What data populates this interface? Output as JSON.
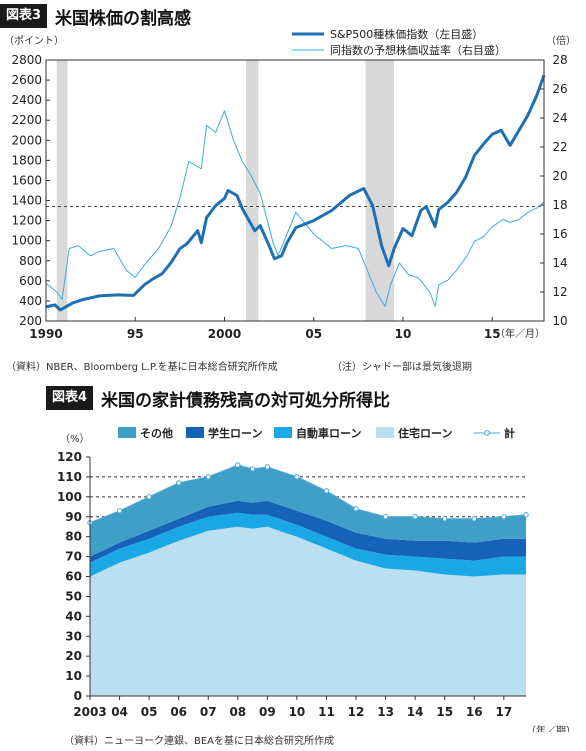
{
  "chart_data": [
    {
      "type": "line",
      "badge": "図表3",
      "title": "米国株価の割高感",
      "left_unit": "（ポイント）",
      "right_unit": "（倍）",
      "x_suffix": "（年／月）",
      "source": "（資料）NBER、Bloomberg L.P.を基に日本総合研究所作成",
      "note": "（注）シャドー部は景気後退期",
      "x_ticks": [
        "1990",
        "95",
        "2000",
        "05",
        "10",
        "15"
      ],
      "x_tick_years": [
        1990,
        1995,
        2000,
        2005,
        2010,
        2015
      ],
      "xlim": [
        1990,
        2017.9
      ],
      "ylim_left": [
        200,
        2800
      ],
      "ylim_right": [
        10,
        28
      ],
      "y_ticks_left": [
        200,
        400,
        600,
        800,
        1000,
        1200,
        1400,
        1600,
        1800,
        2000,
        2200,
        2400,
        2600,
        2800
      ],
      "y_ticks_right": [
        10,
        12,
        14,
        16,
        18,
        20,
        22,
        24,
        26,
        28
      ],
      "recessions": [
        [
          1990.6,
          1991.2
        ],
        [
          2001.2,
          2001.9
        ],
        [
          2007.9,
          2009.5
        ]
      ],
      "reference_line_right": 17.9,
      "series": [
        {
          "name": "S&P500種株価指数（左目盛）",
          "axis": "left",
          "color": "#1f6fb4",
          "x": [
            1990.0,
            1990.5,
            1990.8,
            1991.0,
            1991.5,
            1992.0,
            1993.0,
            1994.0,
            1994.9,
            1995.5,
            1996.0,
            1996.5,
            1997.0,
            1997.5,
            1997.9,
            1998.5,
            1998.7,
            1999.0,
            1999.5,
            2000.0,
            2000.2,
            2000.7,
            2001.0,
            2001.7,
            2002.0,
            2002.5,
            2002.8,
            2003.2,
            2003.5,
            2004.0,
            2005.0,
            2006.0,
            2007.0,
            2007.8,
            2008.3,
            2008.8,
            2009.2,
            2009.5,
            2010.0,
            2010.5,
            2011.0,
            2011.3,
            2011.8,
            2012.0,
            2012.5,
            2013.0,
            2013.5,
            2014.0,
            2014.5,
            2015.0,
            2015.5,
            2016.0,
            2016.5,
            2017.0,
            2017.5,
            2017.9
          ],
          "values": [
            340,
            360,
            310,
            330,
            380,
            410,
            450,
            460,
            455,
            560,
            620,
            670,
            780,
            920,
            970,
            1100,
            980,
            1230,
            1350,
            1420,
            1500,
            1450,
            1320,
            1100,
            1150,
            950,
            820,
            850,
            980,
            1130,
            1200,
            1300,
            1450,
            1520,
            1350,
            950,
            750,
            920,
            1120,
            1050,
            1300,
            1340,
            1140,
            1310,
            1380,
            1480,
            1630,
            1850,
            1960,
            2060,
            2100,
            1950,
            2100,
            2250,
            2450,
            2650
          ]
        },
        {
          "name": "同指数の予想株価収益率（右目盛）",
          "axis": "right",
          "color": "#3aaee0",
          "x": [
            1990.0,
            1990.6,
            1990.9,
            1991.3,
            1991.8,
            1992.5,
            1993.0,
            1993.8,
            1994.5,
            1995.0,
            1995.6,
            1996.3,
            1997.0,
            1997.5,
            1998.0,
            1998.7,
            1999.0,
            1999.5,
            2000.0,
            2000.5,
            2001.0,
            2001.5,
            2002.0,
            2002.7,
            2003.0,
            2003.5,
            2004.0,
            2005.0,
            2006.0,
            2006.8,
            2007.5,
            2008.0,
            2008.5,
            2009.0,
            2009.3,
            2009.8,
            2010.3,
            2010.8,
            2011.0,
            2011.5,
            2011.8,
            2012.0,
            2012.5,
            2013.0,
            2013.6,
            2014.0,
            2014.5,
            2015.0,
            2015.6,
            2016.0,
            2016.5,
            2017.0,
            2017.5,
            2017.9
          ],
          "values": [
            12.6,
            12.0,
            11.5,
            15.0,
            15.2,
            14.5,
            14.8,
            15.0,
            13.5,
            13.0,
            14.0,
            15.0,
            16.5,
            18.5,
            21.0,
            20.5,
            23.5,
            23.0,
            24.5,
            22.5,
            21.0,
            20.0,
            18.8,
            15.5,
            14.5,
            16.0,
            17.5,
            16.0,
            15.0,
            15.2,
            15.0,
            13.5,
            12.0,
            11.0,
            12.5,
            14.0,
            13.2,
            13.0,
            12.8,
            12.0,
            11.0,
            12.5,
            12.8,
            13.5,
            14.5,
            15.5,
            15.8,
            16.5,
            17.0,
            16.8,
            17.0,
            17.5,
            17.8,
            18.2
          ]
        }
      ]
    },
    {
      "type": "area",
      "stacked": true,
      "badge": "図表4",
      "title": "米国の家計債務残高の対可処分所得比",
      "y_unit": "（%）",
      "x_suffix": "（年／期）",
      "source": "（資料）ニューヨーク連銀、BEAを基に日本総合研究所作成",
      "x_ticks": [
        "2003",
        "04",
        "05",
        "06",
        "07",
        "08",
        "09",
        "10",
        "11",
        "12",
        "13",
        "14",
        "15",
        "16",
        "17"
      ],
      "x_tick_years": [
        2003,
        2004,
        2005,
        2006,
        2007,
        2008,
        2009,
        2010,
        2011,
        2012,
        2013,
        2014,
        2015,
        2016,
        2017
      ],
      "xlim": [
        2003.0,
        2017.75
      ],
      "ylim": [
        0,
        120
      ],
      "y_ticks": [
        0,
        10,
        20,
        30,
        40,
        50,
        60,
        70,
        80,
        90,
        100,
        110,
        120
      ],
      "dashed_gridlines": [
        90,
        100,
        110
      ],
      "x": [
        2003.0,
        2004.0,
        2005.0,
        2006.0,
        2007.0,
        2008.0,
        2008.5,
        2009.0,
        2010.0,
        2011.0,
        2012.0,
        2013.0,
        2014.0,
        2015.0,
        2016.0,
        2017.0,
        2017.75
      ],
      "series": [
        {
          "name": "住宅ローン",
          "color": "#b9dff0",
          "values": [
            60,
            67,
            72,
            78,
            83,
            85,
            84,
            85,
            80,
            74,
            68,
            64,
            63,
            61,
            60,
            61,
            61
          ]
        },
        {
          "name": "自動車ローン",
          "color": "#1aa8e4",
          "values": [
            7,
            7,
            7,
            7,
            7,
            7,
            7,
            6,
            6,
            6,
            6,
            7,
            7,
            8,
            8,
            9,
            9
          ]
        },
        {
          "name": "学生ローン",
          "color": "#1662b8",
          "values": [
            3,
            3,
            4,
            4,
            5,
            6,
            6,
            7,
            7,
            8,
            8,
            8,
            8,
            9,
            9,
            9,
            9
          ]
        },
        {
          "name": "その他",
          "color": "#3f9fc6",
          "values": [
            17,
            16,
            17,
            18,
            15,
            18,
            17,
            17,
            17,
            15,
            12,
            11,
            12,
            11,
            12,
            11,
            12
          ]
        }
      ],
      "total": {
        "name": "計",
        "color": "#4aa8d8",
        "values": [
          87,
          93,
          100,
          107,
          110,
          116,
          114,
          115,
          110,
          103,
          94,
          90,
          90,
          89,
          89,
          90,
          91
        ]
      }
    }
  ]
}
